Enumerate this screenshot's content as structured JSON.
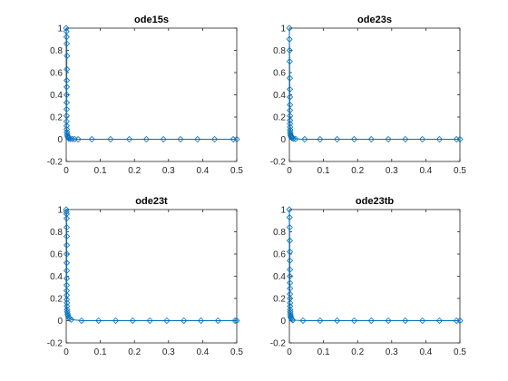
{
  "chart_data": [
    {
      "type": "line",
      "title": "ode15s",
      "xlabel": "",
      "ylabel": "",
      "xlim": [
        0,
        0.5
      ],
      "ylim": [
        -0.2,
        1
      ],
      "xticks": [
        "0",
        "0.1",
        "0.2",
        "0.3",
        "0.4",
        "0.5"
      ],
      "yticks": [
        "-0.2",
        "0",
        "0.2",
        "0.4",
        "0.6",
        "0.8",
        "1"
      ],
      "grid": false,
      "series": [
        {
          "marker": "diamond",
          "color": "#0072BD",
          "x": [
            0,
            0.0005,
            0.001,
            0.0015,
            0.002,
            0.0018,
            0.0016,
            0.0015,
            0.0014,
            0.0013,
            0.0012,
            0.0011,
            0.001,
            0.0012,
            0.0015,
            0.002,
            0.003,
            0.004,
            0.005,
            0.006,
            0.008,
            0.012,
            0.018,
            0.025,
            0.035,
            0.075,
            0.13,
            0.185,
            0.235,
            0.285,
            0.335,
            0.385,
            0.435,
            0.49,
            0.5
          ],
          "y": [
            1,
            0.97,
            0.92,
            0.86,
            0.75,
            0.63,
            0.53,
            0.47,
            0.4,
            0.33,
            0.27,
            0.21,
            0.16,
            0.12,
            0.09,
            0.065,
            0.045,
            0.03,
            0.02,
            0.012,
            0.007,
            0.004,
            0.002,
            0.001,
            0,
            0,
            0,
            0,
            0,
            0,
            0,
            0,
            0,
            0,
            0
          ]
        }
      ]
    },
    {
      "type": "line",
      "title": "ode23s",
      "xlabel": "",
      "ylabel": "",
      "xlim": [
        0,
        0.5
      ],
      "ylim": [
        -0.2,
        1
      ],
      "xticks": [
        "0",
        "0.1",
        "0.2",
        "0.3",
        "0.4",
        "0.5"
      ],
      "yticks": [
        "-0.2",
        "0",
        "0.2",
        "0.4",
        "0.6",
        "0.8",
        "1"
      ],
      "grid": false,
      "series": [
        {
          "marker": "diamond",
          "color": "#0072BD",
          "x": [
            0,
            0.0003,
            0.0006,
            0.0009,
            0.0012,
            0.0014,
            0.0015,
            0.0016,
            0.0016,
            0.0017,
            0.0018,
            0.0019,
            0.002,
            0.0022,
            0.0025,
            0.003,
            0.004,
            0.005,
            0.006,
            0.008,
            0.012,
            0.018,
            0.045,
            0.09,
            0.14,
            0.19,
            0.24,
            0.29,
            0.34,
            0.39,
            0.44,
            0.49,
            0.5
          ],
          "y": [
            1,
            0.9,
            0.8,
            0.7,
            0.55,
            0.45,
            0.38,
            0.31,
            0.26,
            0.21,
            0.17,
            0.14,
            0.11,
            0.085,
            0.065,
            0.048,
            0.035,
            0.025,
            0.017,
            0.011,
            0.006,
            0.003,
            0,
            0,
            0,
            0,
            0,
            0,
            0,
            0,
            0,
            0,
            0
          ]
        }
      ]
    },
    {
      "type": "line",
      "title": "ode23t",
      "xlabel": "",
      "ylabel": "",
      "xlim": [
        0,
        0.5
      ],
      "ylim": [
        -0.2,
        1
      ],
      "xticks": [
        "0",
        "0.1",
        "0.2",
        "0.3",
        "0.4",
        "0.5"
      ],
      "yticks": [
        "-0.2",
        "0",
        "0.2",
        "0.4",
        "0.6",
        "0.8",
        "1"
      ],
      "grid": false,
      "series": [
        {
          "marker": "diamond",
          "color": "#0072BD",
          "x": [
            0,
            0.0005,
            0.001,
            0.0012,
            0.0014,
            0.0015,
            0.0015,
            0.0015,
            0.0014,
            0.0014,
            0.0014,
            0.0013,
            0.0013,
            0.0014,
            0.0015,
            0.0018,
            0.002,
            0.0025,
            0.003,
            0.004,
            0.005,
            0.007,
            0.01,
            0.015,
            0.045,
            0.095,
            0.145,
            0.195,
            0.245,
            0.295,
            0.345,
            0.395,
            0.445,
            0.495,
            0.5
          ],
          "y": [
            1,
            0.98,
            0.96,
            0.92,
            0.84,
            0.76,
            0.68,
            0.6,
            0.52,
            0.45,
            0.38,
            0.32,
            0.27,
            0.23,
            0.19,
            0.16,
            0.13,
            0.1,
            0.08,
            0.06,
            0.045,
            0.03,
            0.02,
            0.01,
            0,
            0,
            0,
            0,
            0,
            0,
            0,
            0,
            0,
            0,
            0
          ]
        }
      ]
    },
    {
      "type": "line",
      "title": "ode23tb",
      "xlabel": "",
      "ylabel": "",
      "xlim": [
        0,
        0.5
      ],
      "ylim": [
        -0.2,
        1
      ],
      "xticks": [
        "0",
        "0.1",
        "0.2",
        "0.3",
        "0.4",
        "0.5"
      ],
      "yticks": [
        "-0.2",
        "0",
        "0.2",
        "0.4",
        "0.6",
        "0.8",
        "1"
      ],
      "grid": false,
      "series": [
        {
          "marker": "diamond",
          "color": "#0072BD",
          "x": [
            0,
            0.0004,
            0.0008,
            0.0011,
            0.0013,
            0.0014,
            0.0015,
            0.0016,
            0.0016,
            0.0017,
            0.0017,
            0.0018,
            0.0019,
            0.002,
            0.0022,
            0.0025,
            0.003,
            0.0035,
            0.004,
            0.005,
            0.007,
            0.01,
            0.04,
            0.09,
            0.14,
            0.19,
            0.24,
            0.29,
            0.34,
            0.39,
            0.44,
            0.49,
            0.5
          ],
          "y": [
            1,
            0.93,
            0.84,
            0.72,
            0.62,
            0.54,
            0.46,
            0.4,
            0.34,
            0.29,
            0.24,
            0.2,
            0.16,
            0.13,
            0.1,
            0.08,
            0.06,
            0.045,
            0.033,
            0.022,
            0.012,
            0.005,
            0,
            0,
            0,
            0,
            0,
            0,
            0,
            0,
            0,
            0,
            0
          ]
        }
      ]
    }
  ]
}
